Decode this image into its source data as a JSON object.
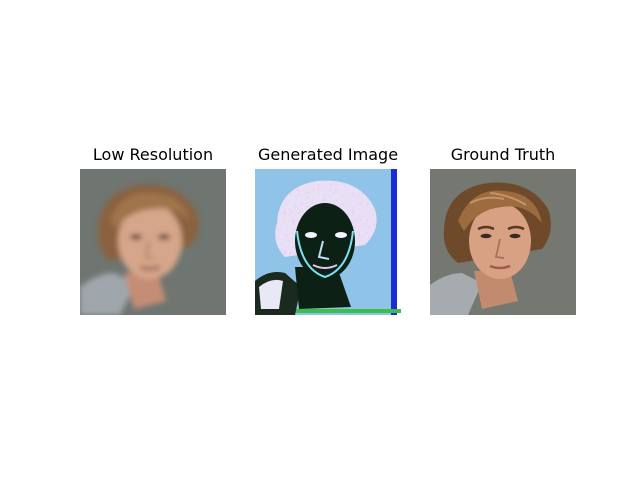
{
  "panels": [
    {
      "title": "Low Resolution",
      "background": "#6f7570",
      "hair": "#8a6240",
      "skin": "#d6a68a",
      "shirt": "#9fa7ad"
    },
    {
      "title": "Generated Image",
      "background": "#8fc3e8",
      "hair": "#e8e0f4",
      "skin": "#0c2114",
      "shirt": "#1b2a1f"
    },
    {
      "title": "Ground Truth",
      "background": "#747871",
      "hair": "#6f4a2a",
      "skin": "#d9a183",
      "shirt": "#a5abaf"
    }
  ]
}
